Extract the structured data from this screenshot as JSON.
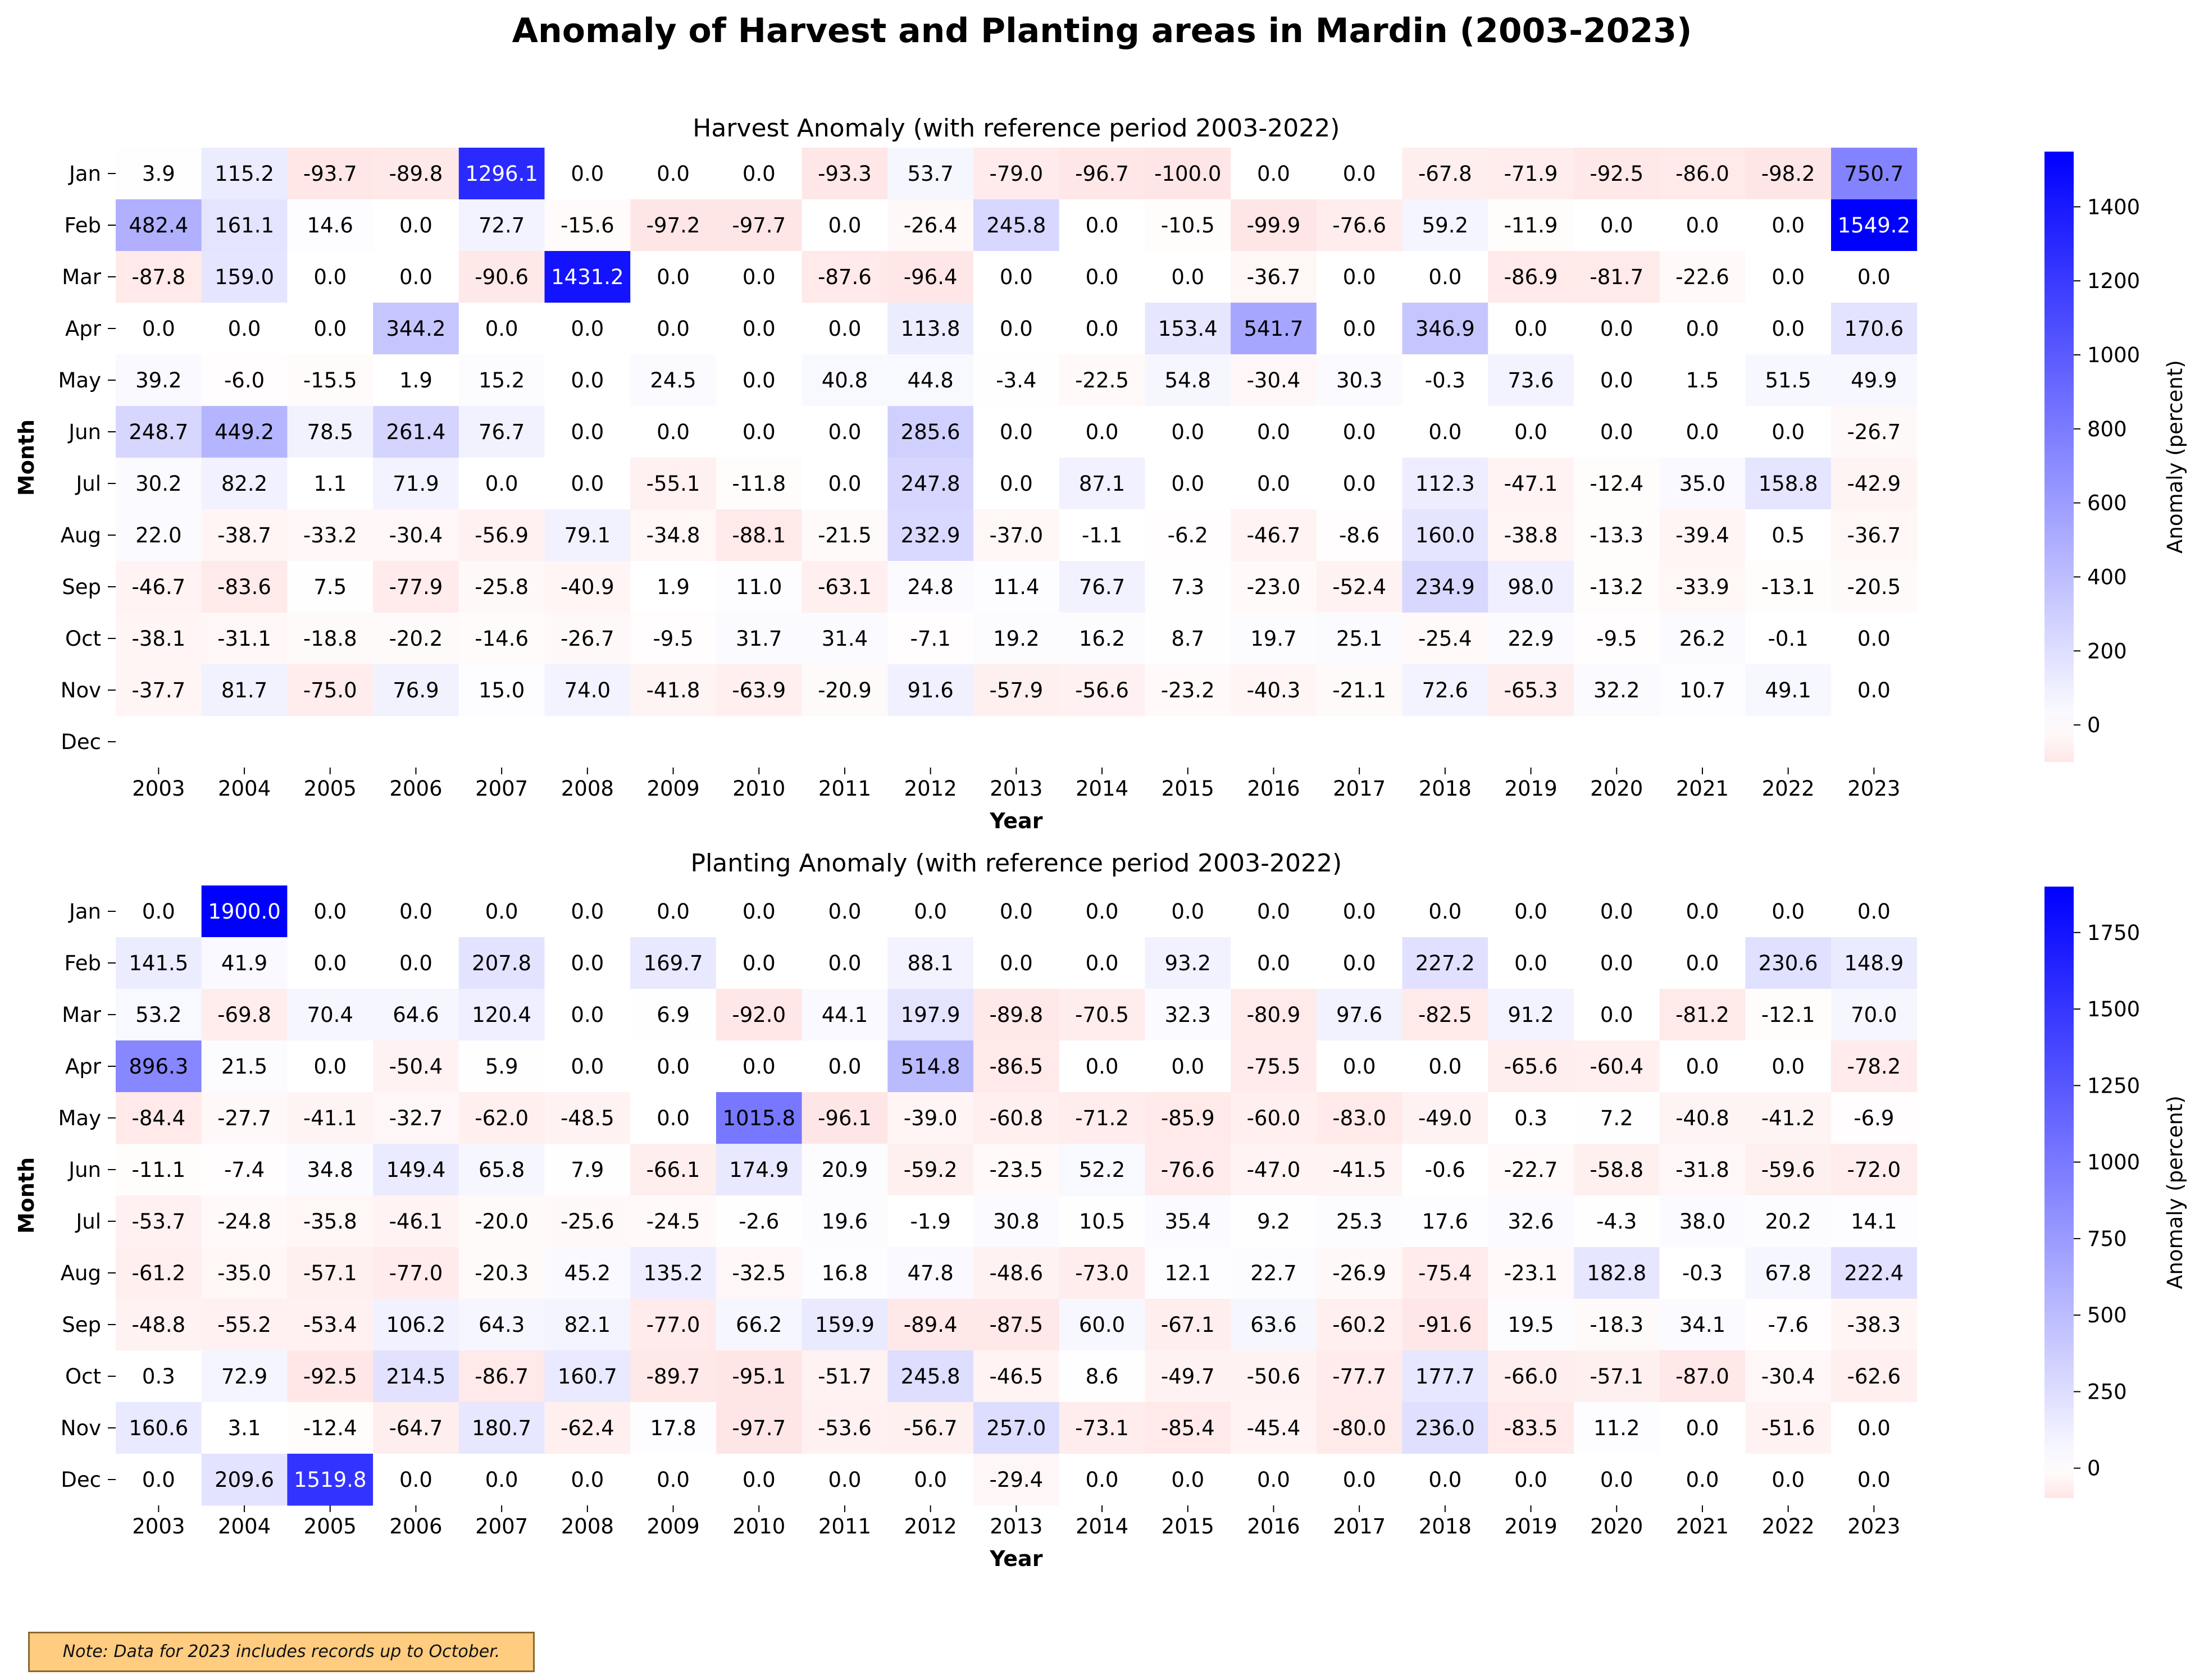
{
  "title": "Anomaly of Harvest and Planting areas in Mardin (2003-2023)",
  "note": "Note: Data for 2023 includes records up to October.",
  "colors": {
    "negative": "#ff6a6a",
    "zero": "#ffffff",
    "positive": "#0000ff"
  },
  "chart_data": [
    {
      "type": "heatmap",
      "title": "Harvest Anomaly (with reference period 2003-2022)",
      "xlabel": "Year",
      "ylabel": "Month",
      "colorbar_label": "Anomaly (percent)",
      "colorbar_ticks": [
        0,
        200,
        400,
        600,
        800,
        1000,
        1200,
        1400
      ],
      "color_range": [
        -100,
        1549.2
      ],
      "x": [
        "2003",
        "2004",
        "2005",
        "2006",
        "2007",
        "2008",
        "2009",
        "2010",
        "2011",
        "2012",
        "2013",
        "2014",
        "2015",
        "2016",
        "2017",
        "2018",
        "2019",
        "2020",
        "2021",
        "2022",
        "2023"
      ],
      "y": [
        "Jan",
        "Feb",
        "Mar",
        "Apr",
        "May",
        "Jun",
        "Jul",
        "Aug",
        "Sep",
        "Oct",
        "Nov",
        "Dec"
      ],
      "values": [
        [
          3.9,
          115.2,
          -93.7,
          -89.8,
          1296.1,
          0.0,
          0.0,
          0.0,
          -93.3,
          53.7,
          -79.0,
          -96.7,
          -100.0,
          0.0,
          0.0,
          -67.8,
          -71.9,
          -92.5,
          -86.0,
          -98.2,
          750.7
        ],
        [
          482.4,
          161.1,
          14.6,
          0.0,
          72.7,
          -15.6,
          -97.2,
          -97.7,
          0.0,
          -26.4,
          245.8,
          0.0,
          -10.5,
          -99.9,
          -76.6,
          59.2,
          -11.9,
          0.0,
          0.0,
          0.0,
          1549.2
        ],
        [
          -87.8,
          159.0,
          0.0,
          0.0,
          -90.6,
          1431.2,
          0.0,
          0.0,
          -87.6,
          -96.4,
          0.0,
          0.0,
          0.0,
          -36.7,
          0.0,
          0.0,
          -86.9,
          -81.7,
          -22.6,
          0.0,
          0.0
        ],
        [
          0.0,
          0.0,
          0.0,
          344.2,
          0.0,
          0.0,
          0.0,
          0.0,
          0.0,
          113.8,
          0.0,
          0.0,
          153.4,
          541.7,
          0.0,
          346.9,
          0.0,
          0.0,
          0.0,
          0.0,
          170.6
        ],
        [
          39.2,
          -6.0,
          -15.5,
          1.9,
          15.2,
          0.0,
          24.5,
          0.0,
          40.8,
          44.8,
          -3.4,
          -22.5,
          54.8,
          -30.4,
          30.3,
          -0.3,
          73.6,
          0.0,
          1.5,
          51.5,
          49.9
        ],
        [
          248.7,
          449.2,
          78.5,
          261.4,
          76.7,
          0.0,
          0.0,
          0.0,
          0.0,
          285.6,
          0.0,
          0.0,
          0.0,
          0.0,
          0.0,
          0.0,
          0.0,
          0.0,
          0.0,
          0.0,
          -26.7
        ],
        [
          30.2,
          82.2,
          1.1,
          71.9,
          0.0,
          0.0,
          -55.1,
          -11.8,
          0.0,
          247.8,
          0.0,
          87.1,
          0.0,
          0.0,
          0.0,
          112.3,
          -47.1,
          -12.4,
          35.0,
          158.8,
          -42.9
        ],
        [
          22.0,
          -38.7,
          -33.2,
          -30.4,
          -56.9,
          79.1,
          -34.8,
          -88.1,
          -21.5,
          232.9,
          -37.0,
          -1.1,
          -6.2,
          -46.7,
          -8.6,
          160.0,
          -38.8,
          -13.3,
          -39.4,
          0.5,
          -36.7
        ],
        [
          -46.7,
          -83.6,
          7.5,
          -77.9,
          -25.8,
          -40.9,
          1.9,
          11.0,
          -63.1,
          24.8,
          11.4,
          76.7,
          7.3,
          -23.0,
          -52.4,
          234.9,
          98.0,
          -13.2,
          -33.9,
          -13.1,
          -20.5
        ],
        [
          -38.1,
          -31.1,
          -18.8,
          -20.2,
          -14.6,
          -26.7,
          -9.5,
          31.7,
          31.4,
          -7.1,
          19.2,
          16.2,
          8.7,
          19.7,
          25.1,
          -25.4,
          22.9,
          -9.5,
          26.2,
          -0.1,
          0.0
        ],
        [
          -37.7,
          81.7,
          -75.0,
          76.9,
          15.0,
          74.0,
          -41.8,
          -63.9,
          -20.9,
          91.6,
          -57.9,
          -56.6,
          -23.2,
          -40.3,
          -21.1,
          72.6,
          -65.3,
          32.2,
          10.7,
          49.1,
          0.0
        ],
        [
          null,
          null,
          null,
          null,
          null,
          null,
          null,
          null,
          null,
          null,
          null,
          null,
          null,
          null,
          null,
          null,
          null,
          null,
          null,
          null,
          null
        ]
      ]
    },
    {
      "type": "heatmap",
      "title": "Planting Anomaly (with reference period 2003-2022)",
      "xlabel": "Year",
      "ylabel": "Month",
      "colorbar_label": "Anomaly (percent)",
      "colorbar_ticks": [
        0,
        250,
        500,
        750,
        1000,
        1250,
        1500,
        1750
      ],
      "color_range": [
        -97.7,
        1900.0
      ],
      "x": [
        "2003",
        "2004",
        "2005",
        "2006",
        "2007",
        "2008",
        "2009",
        "2010",
        "2011",
        "2012",
        "2013",
        "2014",
        "2015",
        "2016",
        "2017",
        "2018",
        "2019",
        "2020",
        "2021",
        "2022",
        "2023"
      ],
      "y": [
        "Jan",
        "Feb",
        "Mar",
        "Apr",
        "May",
        "Jun",
        "Jul",
        "Aug",
        "Sep",
        "Oct",
        "Nov",
        "Dec"
      ],
      "values": [
        [
          0.0,
          1900.0,
          0.0,
          0.0,
          0.0,
          0.0,
          0.0,
          0.0,
          0.0,
          0.0,
          0.0,
          0.0,
          0.0,
          0.0,
          0.0,
          0.0,
          0.0,
          0.0,
          0.0,
          0.0,
          0.0
        ],
        [
          141.5,
          41.9,
          0.0,
          0.0,
          207.8,
          0.0,
          169.7,
          0.0,
          0.0,
          88.1,
          0.0,
          0.0,
          93.2,
          0.0,
          0.0,
          227.2,
          0.0,
          0.0,
          0.0,
          230.6,
          148.9
        ],
        [
          53.2,
          -69.8,
          70.4,
          64.6,
          120.4,
          0.0,
          6.9,
          -92.0,
          44.1,
          197.9,
          -89.8,
          -70.5,
          32.3,
          -80.9,
          97.6,
          -82.5,
          91.2,
          0.0,
          -81.2,
          -12.1,
          70.0
        ],
        [
          896.3,
          21.5,
          0.0,
          -50.4,
          5.9,
          0.0,
          0.0,
          0.0,
          0.0,
          514.8,
          -86.5,
          0.0,
          0.0,
          -75.5,
          0.0,
          0.0,
          -65.6,
          -60.4,
          0.0,
          0.0,
          -78.2
        ],
        [
          -84.4,
          -27.7,
          -41.1,
          -32.7,
          -62.0,
          -48.5,
          0.0,
          1015.8,
          -96.1,
          -39.0,
          -60.8,
          -71.2,
          -85.9,
          -60.0,
          -83.0,
          -49.0,
          0.3,
          7.2,
          -40.8,
          -41.2,
          -6.9
        ],
        [
          -11.1,
          -7.4,
          34.8,
          149.4,
          65.8,
          7.9,
          -66.1,
          174.9,
          20.9,
          -59.2,
          -23.5,
          52.2,
          -76.6,
          -47.0,
          -41.5,
          -0.6,
          -22.7,
          -58.8,
          -31.8,
          -59.6,
          -72.0
        ],
        [
          -53.7,
          -24.8,
          -35.8,
          -46.1,
          -20.0,
          -25.6,
          -24.5,
          -2.6,
          19.6,
          -1.9,
          30.8,
          10.5,
          35.4,
          9.2,
          25.3,
          17.6,
          32.6,
          -4.3,
          38.0,
          20.2,
          14.1
        ],
        [
          -61.2,
          -35.0,
          -57.1,
          -77.0,
          -20.3,
          45.2,
          135.2,
          -32.5,
          16.8,
          47.8,
          -48.6,
          -73.0,
          12.1,
          22.7,
          -26.9,
          -75.4,
          -23.1,
          182.8,
          -0.3,
          67.8,
          222.4
        ],
        [
          -48.8,
          -55.2,
          -53.4,
          106.2,
          64.3,
          82.1,
          -77.0,
          66.2,
          159.9,
          -89.4,
          -87.5,
          60.0,
          -67.1,
          63.6,
          -60.2,
          -91.6,
          19.5,
          -18.3,
          34.1,
          -7.6,
          -38.3
        ],
        [
          0.3,
          72.9,
          -92.5,
          214.5,
          -86.7,
          160.7,
          -89.7,
          -95.1,
          -51.7,
          245.8,
          -46.5,
          8.6,
          -49.7,
          -50.6,
          -77.7,
          177.7,
          -66.0,
          -57.1,
          -87.0,
          -30.4,
          -62.6
        ],
        [
          160.6,
          3.1,
          -12.4,
          -64.7,
          180.7,
          -62.4,
          17.8,
          -97.7,
          -53.6,
          -56.7,
          257.0,
          -73.1,
          -85.4,
          -45.4,
          -80.0,
          236.0,
          -83.5,
          11.2,
          0.0,
          -51.6,
          0.0
        ],
        [
          0.0,
          209.6,
          1519.8,
          0.0,
          0.0,
          0.0,
          0.0,
          0.0,
          0.0,
          0.0,
          -29.4,
          0.0,
          0.0,
          0.0,
          0.0,
          0.0,
          0.0,
          0.0,
          0.0,
          0.0,
          0.0
        ]
      ]
    }
  ]
}
